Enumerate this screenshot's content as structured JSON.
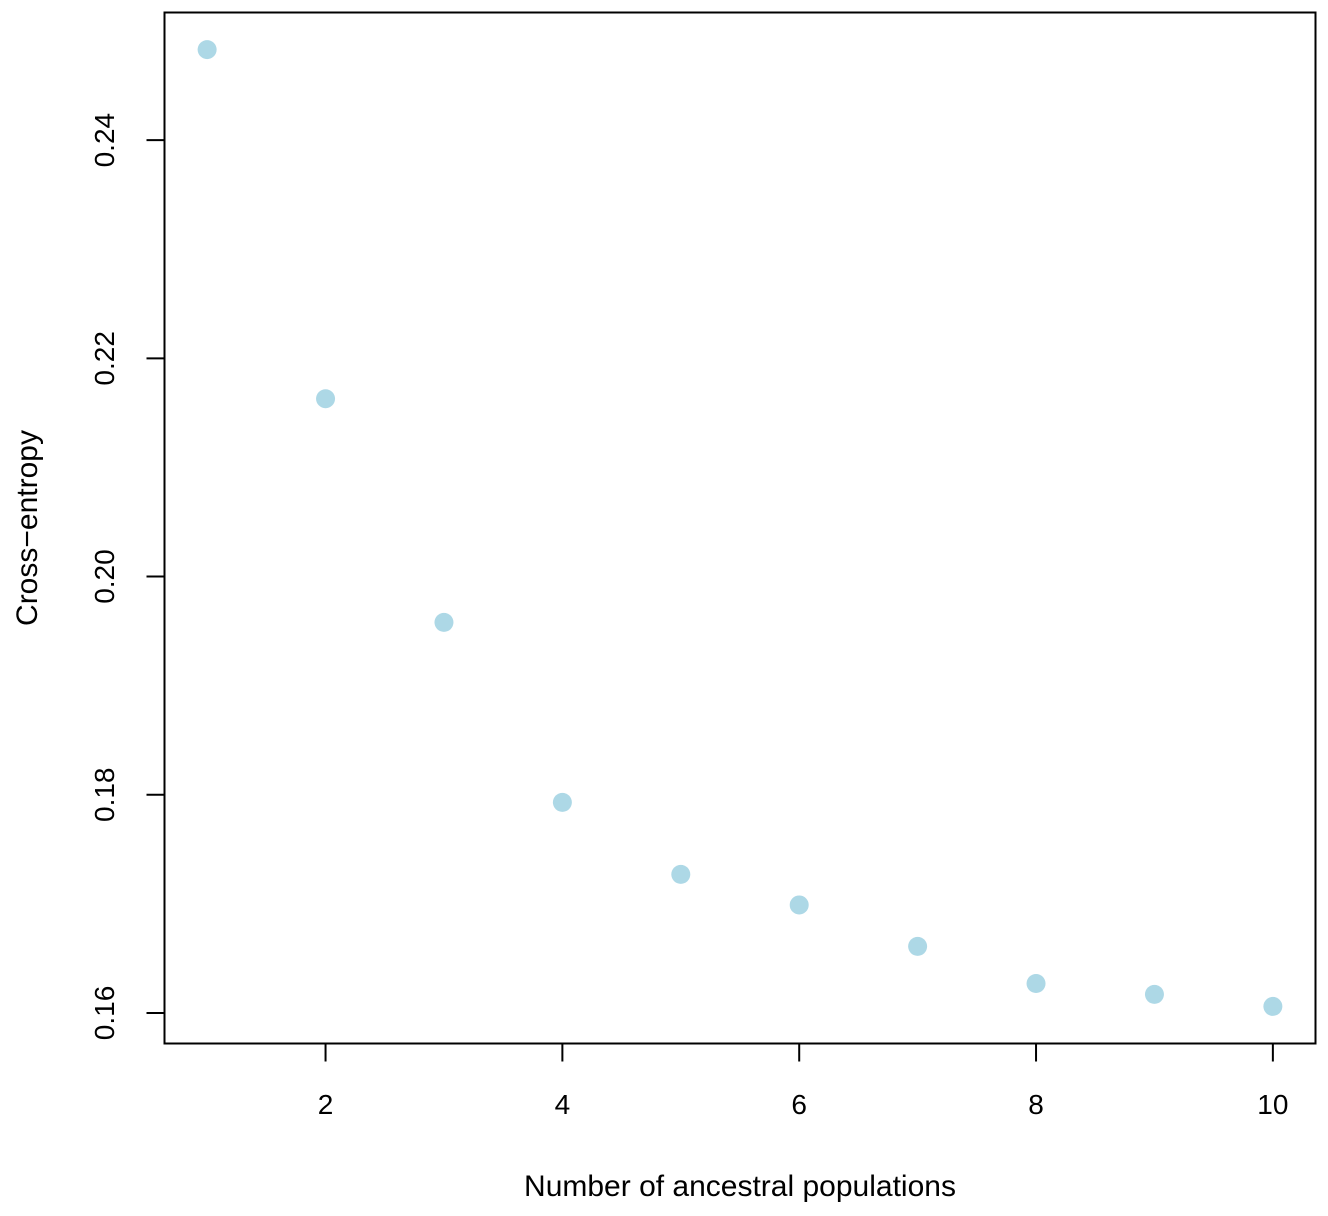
{
  "chart_data": {
    "type": "scatter",
    "title": "",
    "xlabel": "Number of ancestral populations",
    "ylabel": "Cross−entropy",
    "x": [
      1,
      2,
      3,
      4,
      5,
      6,
      7,
      8,
      9,
      10
    ],
    "y": [
      0.2483,
      0.2163,
      0.1958,
      0.1793,
      0.1727,
      0.1699,
      0.1661,
      0.1627,
      0.1617,
      0.1606
    ],
    "xlim": [
      0.64,
      10.36
    ],
    "ylim": [
      0.1572,
      0.2517
    ],
    "xticks": [
      2,
      4,
      6,
      8,
      10
    ],
    "xtick_labels": [
      "2",
      "4",
      "6",
      "8",
      "10"
    ],
    "yticks": [
      0.16,
      0.18,
      0.2,
      0.22,
      0.24
    ],
    "ytick_labels": [
      "0.16",
      "0.18",
      "0.20",
      "0.22",
      "0.24"
    ],
    "grid": false,
    "point_color": "#add8e6",
    "axis_color": "#000000"
  }
}
